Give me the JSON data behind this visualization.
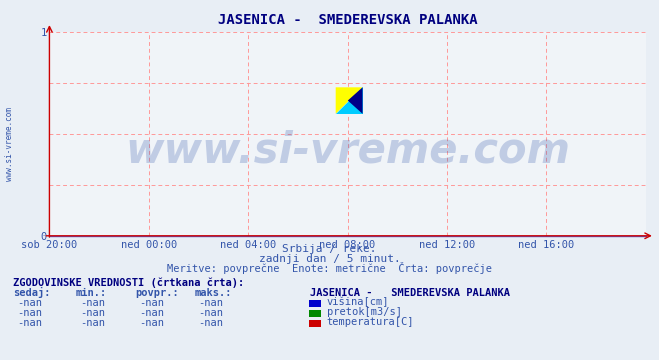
{
  "title": "JASENICA -  SMEDEREVSKA PALANKA",
  "title_color": "#000080",
  "title_fontsize": 10,
  "bg_color": "#e8eef5",
  "plot_bg_color": "#f0f4f8",
  "grid_color": "#ff9999",
  "axis_color": "#3355aa",
  "tick_color": "#3355aa",
  "watermark_text": "www.si-vreme.com",
  "watermark_color": "#3355aa",
  "watermark_alpha": 0.25,
  "watermark_fontsize": 30,
  "sidebar_text": "www.si-vreme.com",
  "sidebar_color": "#3355aa",
  "xlim": [
    0,
    1
  ],
  "ylim": [
    0,
    1
  ],
  "yticks": [
    0,
    1
  ],
  "ytick_labels": [
    "0",
    "1"
  ],
  "xtick_labels": [
    "sob 20:00",
    "ned 00:00",
    "ned 04:00",
    "ned 08:00",
    "ned 12:00",
    "ned 16:00"
  ],
  "xtick_positions": [
    0.0,
    0.167,
    0.333,
    0.5,
    0.667,
    0.833
  ],
  "info_line1": "Srbija / reke.",
  "info_line2": "zadnji dan / 5 minut.",
  "info_line3": "Meritve: povprečne  Enote: metrične  Črta: povprečje",
  "info_color": "#3355aa",
  "hist_title": "ZGODOVINSKE VREDNOSTI (črtkana črta):",
  "hist_title_color": "#000080",
  "hist_cols": [
    "sedaj:",
    "min.:",
    "povpr.:",
    "maks.:"
  ],
  "legend_station": "JASENICA -   SMEDEREVSKA PALANKA",
  "legend_items": [
    {
      "label": "višina[cm]",
      "color": "#0000cc"
    },
    {
      "label": "pretok[m3/s]",
      "color": "#008800"
    },
    {
      "label": "temperatura[C]",
      "color": "#cc0000"
    }
  ],
  "logo_colors": [
    "#ffff00",
    "#00ccff",
    "#000088"
  ],
  "arrow_color": "#cc0000",
  "baseline_color": "#5555cc",
  "font_family": "monospace"
}
